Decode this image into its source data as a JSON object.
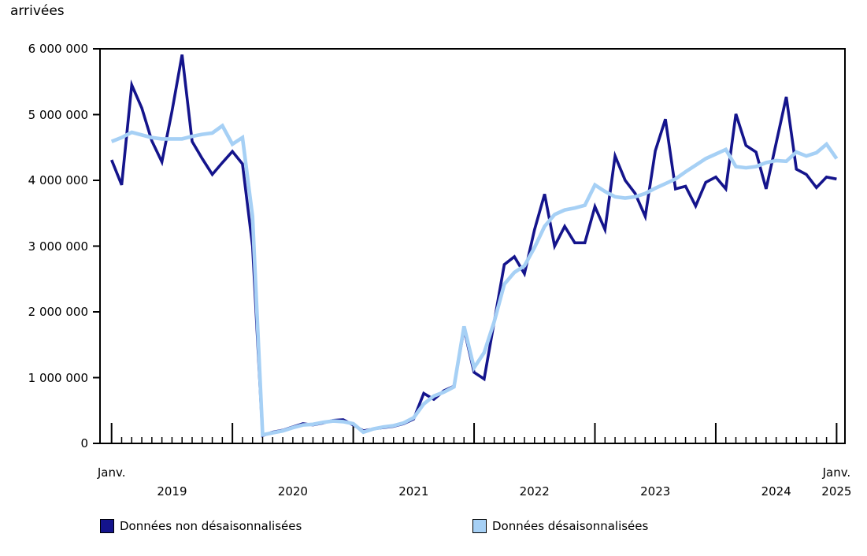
{
  "chart_data": {
    "type": "line",
    "title": "arrivées",
    "ylabel": "arrivées",
    "ylim": [
      0,
      6000000
    ],
    "grid": false,
    "legend_position": "bottom",
    "y_tick_labels": [
      "0",
      "1 000 000",
      "2 000 000",
      "3 000 000",
      "4 000 000",
      "5 000 000",
      "6 000 000"
    ],
    "x_axis": {
      "unit": "month",
      "start": "2019-01",
      "end": "2025-01",
      "first_month_label": "Janv.",
      "year_labels": [
        "2019",
        "2020",
        "2021",
        "2022",
        "2023",
        "2024"
      ],
      "last_month_label": "Janv.",
      "last_year_label": "2025"
    },
    "series": [
      {
        "name": "Données non désaisonnalisées",
        "color": "#14148c",
        "values": [
          4310000,
          3930000,
          5450000,
          5100000,
          4600000,
          4280000,
          5050000,
          5910000,
          4590000,
          4330000,
          4090000,
          4270000,
          4440000,
          4250000,
          3000000,
          120000,
          170000,
          200000,
          250000,
          300000,
          280000,
          310000,
          350000,
          360000,
          280000,
          190000,
          220000,
          240000,
          260000,
          300000,
          370000,
          760000,
          670000,
          800000,
          870000,
          1740000,
          1080000,
          980000,
          1850000,
          2720000,
          2840000,
          2580000,
          3250000,
          3790000,
          3000000,
          3300000,
          3050000,
          3050000,
          3600000,
          3250000,
          4370000,
          4000000,
          3800000,
          3450000,
          4450000,
          4930000,
          3870000,
          3910000,
          3610000,
          3970000,
          4050000,
          3870000,
          5010000,
          4530000,
          4430000,
          3870000,
          4570000,
          5270000,
          4170000,
          4090000,
          3890000,
          4050000,
          4020000
        ]
      },
      {
        "name": "Données désaisonnalisées",
        "color": "#a6d0f5",
        "values": [
          4590000,
          4650000,
          4730000,
          4690000,
          4650000,
          4630000,
          4630000,
          4630000,
          4670000,
          4700000,
          4720000,
          4830000,
          4550000,
          4650000,
          3450000,
          130000,
          160000,
          190000,
          240000,
          280000,
          290000,
          320000,
          340000,
          330000,
          300000,
          170000,
          220000,
          250000,
          270000,
          310000,
          390000,
          600000,
          720000,
          780000,
          860000,
          1780000,
          1150000,
          1380000,
          1850000,
          2420000,
          2600000,
          2700000,
          2980000,
          3300000,
          3480000,
          3550000,
          3580000,
          3620000,
          3930000,
          3830000,
          3750000,
          3730000,
          3750000,
          3800000,
          3880000,
          3950000,
          4020000,
          4130000,
          4230000,
          4330000,
          4400000,
          4470000,
          4210000,
          4190000,
          4210000,
          4270000,
          4300000,
          4290000,
          4430000,
          4370000,
          4420000,
          4550000,
          4330000
        ]
      }
    ],
    "axis_color": "#000000"
  }
}
